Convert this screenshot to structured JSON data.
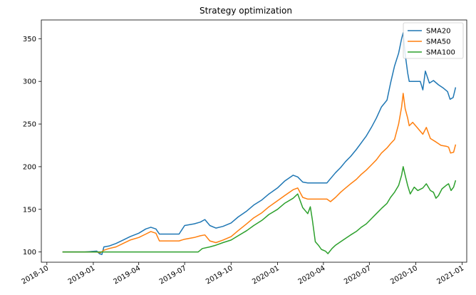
{
  "chart_data": {
    "type": "line",
    "title": "Strategy optimization",
    "xlabel": "",
    "ylabel": "",
    "x_type": "date",
    "xlim": [
      "2018-09-20",
      "2021-01-10"
    ],
    "ylim": [
      88,
      372
    ],
    "grid": false,
    "legend_position": "top-right",
    "x_ticks": [
      {
        "date": "2018-10-01",
        "label": "2018-10"
      },
      {
        "date": "2019-01-01",
        "label": "2019-01"
      },
      {
        "date": "2019-04-01",
        "label": "2019-04"
      },
      {
        "date": "2019-07-01",
        "label": "2019-07"
      },
      {
        "date": "2019-10-01",
        "label": "2019-10"
      },
      {
        "date": "2020-01-01",
        "label": "2020-01"
      },
      {
        "date": "2020-04-01",
        "label": "2020-04"
      },
      {
        "date": "2020-07-01",
        "label": "2020-07"
      },
      {
        "date": "2020-10-01",
        "label": "2020-10"
      },
      {
        "date": "2021-01-01",
        "label": "2021-01"
      }
    ],
    "y_ticks": [
      100,
      150,
      200,
      250,
      300,
      350
    ],
    "series": [
      {
        "name": "SMA20",
        "color": "#1f77b4",
        "points": [
          [
            "2018-11-01",
            100
          ],
          [
            "2018-12-15",
            100
          ],
          [
            "2019-01-08",
            101
          ],
          [
            "2019-01-13",
            98
          ],
          [
            "2019-01-18",
            97
          ],
          [
            "2019-01-22",
            106
          ],
          [
            "2019-02-01",
            107
          ],
          [
            "2019-02-15",
            110
          ],
          [
            "2019-03-01",
            114
          ],
          [
            "2019-03-15",
            118
          ],
          [
            "2019-04-01",
            122
          ],
          [
            "2019-04-15",
            127
          ],
          [
            "2019-04-25",
            129
          ],
          [
            "2019-05-05",
            127
          ],
          [
            "2019-05-12",
            121
          ],
          [
            "2019-06-01",
            121
          ],
          [
            "2019-06-20",
            121
          ],
          [
            "2019-07-01",
            131
          ],
          [
            "2019-07-20",
            133
          ],
          [
            "2019-08-01",
            135
          ],
          [
            "2019-08-10",
            138
          ],
          [
            "2019-08-20",
            131
          ],
          [
            "2019-09-01",
            128
          ],
          [
            "2019-09-15",
            130
          ],
          [
            "2019-10-01",
            134
          ],
          [
            "2019-10-15",
            141
          ],
          [
            "2019-11-01",
            148
          ],
          [
            "2019-11-15",
            155
          ],
          [
            "2019-12-01",
            161
          ],
          [
            "2019-12-15",
            168
          ],
          [
            "2020-01-01",
            175
          ],
          [
            "2020-01-15",
            183
          ],
          [
            "2020-02-01",
            190
          ],
          [
            "2020-02-10",
            188
          ],
          [
            "2020-02-20",
            182
          ],
          [
            "2020-03-01",
            181
          ],
          [
            "2020-03-20",
            181
          ],
          [
            "2020-04-08",
            181
          ],
          [
            "2020-04-15",
            186
          ],
          [
            "2020-04-25",
            193
          ],
          [
            "2020-05-05",
            199
          ],
          [
            "2020-05-15",
            206
          ],
          [
            "2020-05-25",
            212
          ],
          [
            "2020-06-05",
            220
          ],
          [
            "2020-06-15",
            228
          ],
          [
            "2020-06-25",
            236
          ],
          [
            "2020-07-05",
            246
          ],
          [
            "2020-07-15",
            257
          ],
          [
            "2020-07-25",
            270
          ],
          [
            "2020-08-05",
            278
          ],
          [
            "2020-08-12",
            298
          ],
          [
            "2020-08-20",
            318
          ],
          [
            "2020-08-28",
            333
          ],
          [
            "2020-09-03",
            350
          ],
          [
            "2020-09-06",
            357
          ],
          [
            "2020-09-10",
            332
          ],
          [
            "2020-09-15",
            310
          ],
          [
            "2020-09-18",
            300
          ],
          [
            "2020-10-10",
            300
          ],
          [
            "2020-10-15",
            290
          ],
          [
            "2020-10-20",
            312
          ],
          [
            "2020-10-28",
            298
          ],
          [
            "2020-11-05",
            301
          ],
          [
            "2020-11-15",
            296
          ],
          [
            "2020-11-25",
            292
          ],
          [
            "2020-12-03",
            288
          ],
          [
            "2020-12-08",
            279
          ],
          [
            "2020-12-14",
            281
          ],
          [
            "2020-12-19",
            293
          ]
        ]
      },
      {
        "name": "SMA50",
        "color": "#ff7f0e",
        "points": [
          [
            "2018-11-01",
            100
          ],
          [
            "2018-12-15",
            100
          ],
          [
            "2019-01-08",
            100
          ],
          [
            "2019-01-15",
            99
          ],
          [
            "2019-01-22",
            102
          ],
          [
            "2019-02-01",
            104
          ],
          [
            "2019-02-15",
            106
          ],
          [
            "2019-03-01",
            110
          ],
          [
            "2019-03-15",
            114
          ],
          [
            "2019-04-01",
            117
          ],
          [
            "2019-04-15",
            121
          ],
          [
            "2019-04-25",
            124
          ],
          [
            "2019-05-05",
            122
          ],
          [
            "2019-05-12",
            113
          ],
          [
            "2019-06-01",
            113
          ],
          [
            "2019-06-20",
            113
          ],
          [
            "2019-07-01",
            115
          ],
          [
            "2019-07-20",
            117
          ],
          [
            "2019-08-01",
            119
          ],
          [
            "2019-08-10",
            120
          ],
          [
            "2019-08-20",
            113
          ],
          [
            "2019-09-01",
            111
          ],
          [
            "2019-09-15",
            114
          ],
          [
            "2019-10-01",
            118
          ],
          [
            "2019-10-15",
            125
          ],
          [
            "2019-11-01",
            133
          ],
          [
            "2019-11-15",
            140
          ],
          [
            "2019-12-01",
            146
          ],
          [
            "2019-12-15",
            153
          ],
          [
            "2020-01-01",
            160
          ],
          [
            "2020-01-15",
            166
          ],
          [
            "2020-02-01",
            173
          ],
          [
            "2020-02-10",
            175
          ],
          [
            "2020-02-20",
            164
          ],
          [
            "2020-03-01",
            162
          ],
          [
            "2020-03-20",
            162
          ],
          [
            "2020-04-08",
            162
          ],
          [
            "2020-04-15",
            159
          ],
          [
            "2020-04-25",
            164
          ],
          [
            "2020-05-05",
            170
          ],
          [
            "2020-05-15",
            175
          ],
          [
            "2020-05-25",
            180
          ],
          [
            "2020-06-05",
            185
          ],
          [
            "2020-06-15",
            191
          ],
          [
            "2020-06-25",
            196
          ],
          [
            "2020-07-05",
            202
          ],
          [
            "2020-07-15",
            208
          ],
          [
            "2020-07-25",
            216
          ],
          [
            "2020-08-05",
            222
          ],
          [
            "2020-08-12",
            227
          ],
          [
            "2020-08-20",
            232
          ],
          [
            "2020-08-28",
            250
          ],
          [
            "2020-09-03",
            270
          ],
          [
            "2020-09-06",
            286
          ],
          [
            "2020-09-10",
            268
          ],
          [
            "2020-09-15",
            257
          ],
          [
            "2020-09-18",
            248
          ],
          [
            "2020-09-25",
            252
          ],
          [
            "2020-10-05",
            245
          ],
          [
            "2020-10-15",
            238
          ],
          [
            "2020-10-22",
            246
          ],
          [
            "2020-10-30",
            233
          ],
          [
            "2020-11-10",
            229
          ],
          [
            "2020-11-20",
            225
          ],
          [
            "2020-11-30",
            224
          ],
          [
            "2020-12-05",
            223
          ],
          [
            "2020-12-09",
            216
          ],
          [
            "2020-12-15",
            217
          ],
          [
            "2020-12-19",
            226
          ]
        ]
      },
      {
        "name": "SMA100",
        "color": "#2ca02c",
        "points": [
          [
            "2018-11-01",
            100
          ],
          [
            "2019-03-01",
            100
          ],
          [
            "2019-05-01",
            100
          ],
          [
            "2019-07-01",
            100
          ],
          [
            "2019-07-28",
            100
          ],
          [
            "2019-08-05",
            104
          ],
          [
            "2019-08-20",
            106
          ],
          [
            "2019-09-01",
            108
          ],
          [
            "2019-09-15",
            111
          ],
          [
            "2019-10-01",
            114
          ],
          [
            "2019-10-15",
            119
          ],
          [
            "2019-11-01",
            125
          ],
          [
            "2019-11-15",
            131
          ],
          [
            "2019-12-01",
            137
          ],
          [
            "2019-12-15",
            144
          ],
          [
            "2020-01-01",
            150
          ],
          [
            "2020-01-15",
            157
          ],
          [
            "2020-02-01",
            163
          ],
          [
            "2020-02-10",
            168
          ],
          [
            "2020-02-20",
            152
          ],
          [
            "2020-03-01",
            145
          ],
          [
            "2020-03-06",
            153
          ],
          [
            "2020-03-10",
            138
          ],
          [
            "2020-03-16",
            112
          ],
          [
            "2020-03-22",
            108
          ],
          [
            "2020-03-28",
            103
          ],
          [
            "2020-04-05",
            101
          ],
          [
            "2020-04-10",
            98
          ],
          [
            "2020-04-18",
            104
          ],
          [
            "2020-04-25",
            108
          ],
          [
            "2020-05-05",
            112
          ],
          [
            "2020-05-15",
            116
          ],
          [
            "2020-05-25",
            120
          ],
          [
            "2020-06-05",
            124
          ],
          [
            "2020-06-15",
            129
          ],
          [
            "2020-06-25",
            133
          ],
          [
            "2020-07-05",
            139
          ],
          [
            "2020-07-15",
            145
          ],
          [
            "2020-07-25",
            151
          ],
          [
            "2020-08-05",
            157
          ],
          [
            "2020-08-12",
            164
          ],
          [
            "2020-08-20",
            170
          ],
          [
            "2020-08-28",
            178
          ],
          [
            "2020-09-03",
            190
          ],
          [
            "2020-09-06",
            200
          ],
          [
            "2020-09-10",
            190
          ],
          [
            "2020-09-15",
            178
          ],
          [
            "2020-09-20",
            168
          ],
          [
            "2020-09-28",
            176
          ],
          [
            "2020-10-05",
            172
          ],
          [
            "2020-10-15",
            175
          ],
          [
            "2020-10-22",
            180
          ],
          [
            "2020-10-30",
            172
          ],
          [
            "2020-11-05",
            170
          ],
          [
            "2020-11-10",
            163
          ],
          [
            "2020-11-15",
            166
          ],
          [
            "2020-11-22",
            174
          ],
          [
            "2020-11-30",
            178
          ],
          [
            "2020-12-05",
            180
          ],
          [
            "2020-12-10",
            172
          ],
          [
            "2020-12-15",
            176
          ],
          [
            "2020-12-19",
            184
          ]
        ]
      }
    ]
  }
}
